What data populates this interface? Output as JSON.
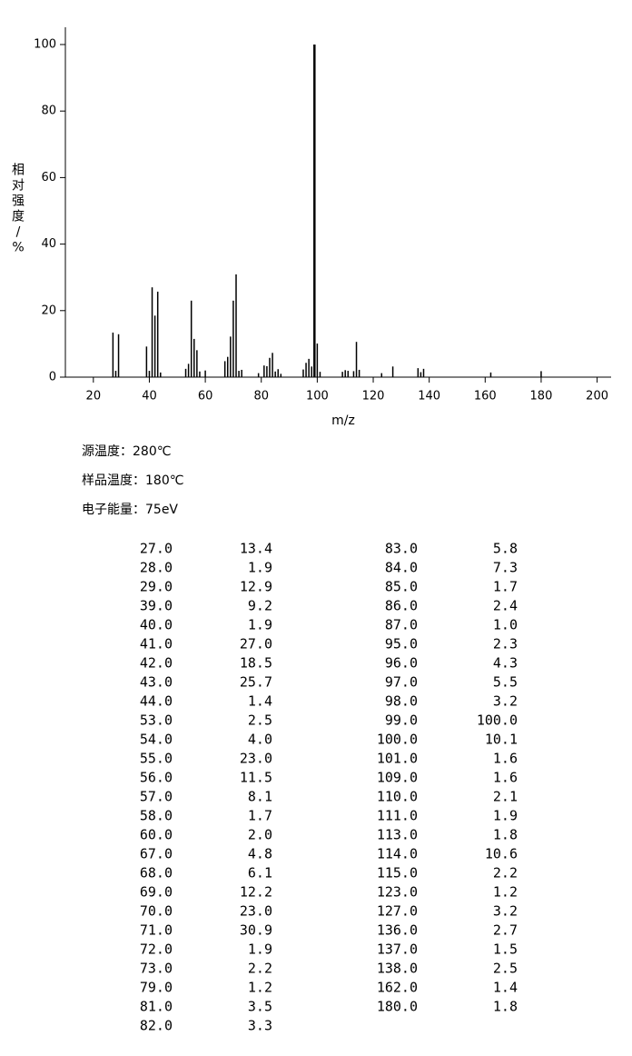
{
  "chart_data": {
    "type": "stem",
    "x_label": "m/z",
    "y_label": "相对强度/%",
    "x": [
      27,
      28,
      29,
      39,
      40,
      41,
      42,
      43,
      44,
      53,
      54,
      55,
      56,
      57,
      58,
      60,
      67,
      68,
      69,
      70,
      71,
      72,
      73,
      79,
      81,
      82,
      83,
      84,
      85,
      86,
      87,
      95,
      96,
      97,
      98,
      99,
      100,
      101,
      109,
      110,
      111,
      113,
      114,
      115,
      123,
      127,
      136,
      137,
      138,
      162,
      180
    ],
    "values": [
      13.4,
      1.9,
      12.9,
      9.2,
      1.9,
      27.0,
      18.5,
      25.7,
      1.4,
      2.5,
      4.0,
      23.0,
      11.5,
      8.1,
      1.7,
      2.0,
      4.8,
      6.1,
      12.2,
      23.0,
      30.9,
      1.9,
      2.2,
      1.2,
      3.5,
      3.3,
      5.8,
      7.3,
      1.7,
      2.4,
      1.0,
      2.3,
      4.3,
      5.5,
      3.2,
      100.0,
      10.1,
      1.6,
      1.6,
      2.1,
      1.9,
      1.8,
      10.6,
      2.2,
      1.2,
      3.2,
      2.7,
      1.5,
      2.5,
      1.4,
      1.8
    ],
    "color": "#000000",
    "xlim": [
      10,
      205
    ],
    "xticks": [
      20,
      40,
      60,
      80,
      100,
      120,
      140,
      160,
      180,
      200
    ],
    "ylim": [
      0,
      100
    ],
    "yticks": [
      0,
      20,
      40,
      60,
      80,
      100
    ]
  },
  "conditions": [
    "源温度：280℃",
    "样品温度：180℃",
    "电子能量：75eV"
  ],
  "peak_table": {
    "rows": [
      [
        "27.0",
        "13.4"
      ],
      [
        "28.0",
        "1.9"
      ],
      [
        "29.0",
        "12.9"
      ],
      [
        "39.0",
        "9.2"
      ],
      [
        "40.0",
        "1.9"
      ],
      [
        "41.0",
        "27.0"
      ],
      [
        "42.0",
        "18.5"
      ],
      [
        "43.0",
        "25.7"
      ],
      [
        "44.0",
        "1.4"
      ],
      [
        "53.0",
        "2.5"
      ],
      [
        "54.0",
        "4.0"
      ],
      [
        "55.0",
        "23.0"
      ],
      [
        "56.0",
        "11.5"
      ],
      [
        "57.0",
        "8.1"
      ],
      [
        "58.0",
        "1.7"
      ],
      [
        "60.0",
        "2.0"
      ],
      [
        "67.0",
        "4.8"
      ],
      [
        "68.0",
        "6.1"
      ],
      [
        "69.0",
        "12.2"
      ],
      [
        "70.0",
        "23.0"
      ],
      [
        "71.0",
        "30.9"
      ],
      [
        "72.0",
        "1.9"
      ],
      [
        "73.0",
        "2.2"
      ],
      [
        "79.0",
        "1.2"
      ],
      [
        "81.0",
        "3.5"
      ],
      [
        "82.0",
        "3.3"
      ],
      [
        "83.0",
        "5.8"
      ],
      [
        "84.0",
        "7.3"
      ],
      [
        "85.0",
        "1.7"
      ],
      [
        "86.0",
        "2.4"
      ],
      [
        "87.0",
        "1.0"
      ],
      [
        "95.0",
        "2.3"
      ],
      [
        "96.0",
        "4.3"
      ],
      [
        "97.0",
        "5.5"
      ],
      [
        "98.0",
        "3.2"
      ],
      [
        "99.0",
        "100.0"
      ],
      [
        "100.0",
        "10.1"
      ],
      [
        "101.0",
        "1.6"
      ],
      [
        "109.0",
        "1.6"
      ],
      [
        "110.0",
        "2.1"
      ],
      [
        "111.0",
        "1.9"
      ],
      [
        "113.0",
        "1.8"
      ],
      [
        "114.0",
        "10.6"
      ],
      [
        "115.0",
        "2.2"
      ],
      [
        "123.0",
        "1.2"
      ],
      [
        "127.0",
        "3.2"
      ],
      [
        "136.0",
        "2.7"
      ],
      [
        "137.0",
        "1.5"
      ],
      [
        "138.0",
        "2.5"
      ],
      [
        "162.0",
        "1.4"
      ],
      [
        "180.0",
        "1.8"
      ]
    ]
  }
}
